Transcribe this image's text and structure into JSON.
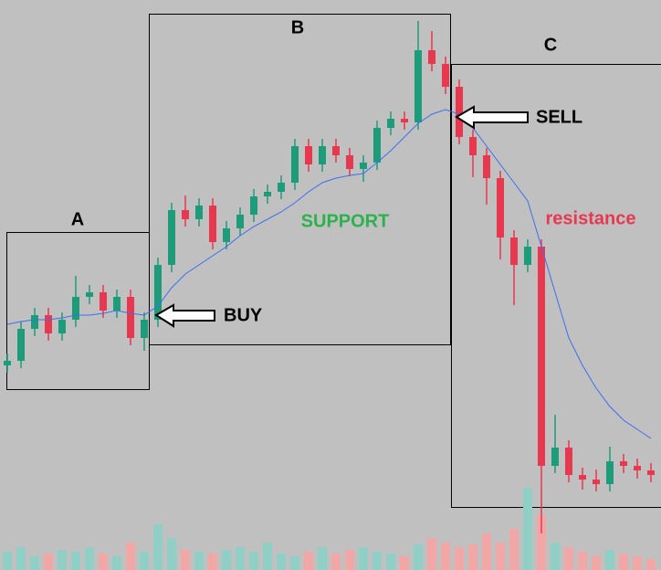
{
  "chart_data": {
    "type": "candlestick",
    "zones": [
      "A",
      "B",
      "C"
    ],
    "signals": [
      "BUY",
      "SELL"
    ],
    "support_label": "SUPPORT",
    "support_color": "#2bb24c",
    "resistance_label": "resistance",
    "resistance_color": "#e8384f",
    "up_color": "#1e9c79",
    "down_color": "#e8384f",
    "ma_color": "#3a6ff0",
    "volume_up_color": "#8fcfc6",
    "volume_down_color": "#f2a7a7",
    "ylim": [
      0,
      624
    ],
    "vlim": [
      0,
      100
    ],
    "open": [
      224,
      229,
      264,
      279,
      259,
      274,
      299,
      304,
      284,
      299,
      254,
      274,
      334,
      394,
      384,
      399,
      359,
      374,
      389,
      409,
      414,
      424,
      464,
      444,
      464,
      454,
      439,
      446,
      484,
      494,
      490,
      569,
      554,
      529,
      474,
      454,
      429,
      364,
      334,
      354,
      114,
      134,
      104,
      99,
      94,
      119,
      114,
      109
    ],
    "close": [
      229,
      264,
      279,
      259,
      274,
      299,
      304,
      284,
      299,
      254,
      274,
      334,
      394,
      384,
      399,
      359,
      374,
      389,
      409,
      414,
      424,
      464,
      444,
      464,
      454,
      439,
      446,
      484,
      494,
      490,
      569,
      554,
      529,
      474,
      454,
      429,
      364,
      334,
      354,
      114,
      134,
      104,
      99,
      94,
      119,
      114,
      109,
      104
    ],
    "high": [
      237,
      272,
      287,
      287,
      282,
      322,
      312,
      312,
      307,
      307,
      282,
      342,
      402,
      410,
      407,
      407,
      382,
      397,
      417,
      422,
      432,
      472,
      472,
      472,
      472,
      462,
      454,
      492,
      502,
      502,
      601,
      590,
      562,
      537,
      482,
      462,
      437,
      372,
      362,
      362,
      170,
      142,
      112,
      110,
      135,
      127,
      122,
      117
    ],
    "low": [
      216,
      221,
      256,
      251,
      251,
      266,
      291,
      276,
      276,
      246,
      240,
      266,
      326,
      376,
      376,
      351,
      351,
      366,
      381,
      401,
      406,
      416,
      436,
      436,
      446,
      431,
      425,
      438,
      476,
      482,
      482,
      546,
      521,
      466,
      430,
      400,
      340,
      290,
      326,
      40,
      106,
      96,
      88,
      86,
      86,
      106,
      100,
      96
    ],
    "ma": [
      269,
      272,
      274,
      274,
      276,
      279,
      279,
      281,
      284,
      281,
      279,
      289,
      309,
      324,
      334,
      344,
      354,
      366,
      376,
      384,
      392,
      402,
      414,
      424,
      429,
      432,
      434,
      446,
      459,
      474,
      489,
      499,
      504,
      499,
      484,
      464,
      444,
      424,
      404,
      354,
      304,
      254,
      224,
      199,
      179,
      164,
      154,
      144
    ],
    "volume": [
      20,
      25,
      15,
      18,
      22,
      20,
      25,
      18,
      15,
      30,
      20,
      50,
      35,
      22,
      20,
      18,
      22,
      25,
      20,
      30,
      18,
      15,
      20,
      25,
      18,
      22,
      25,
      20,
      18,
      15,
      28,
      35,
      30,
      25,
      28,
      40,
      30,
      45,
      90,
      60,
      30,
      25,
      20,
      15,
      22,
      18,
      15,
      12
    ]
  }
}
